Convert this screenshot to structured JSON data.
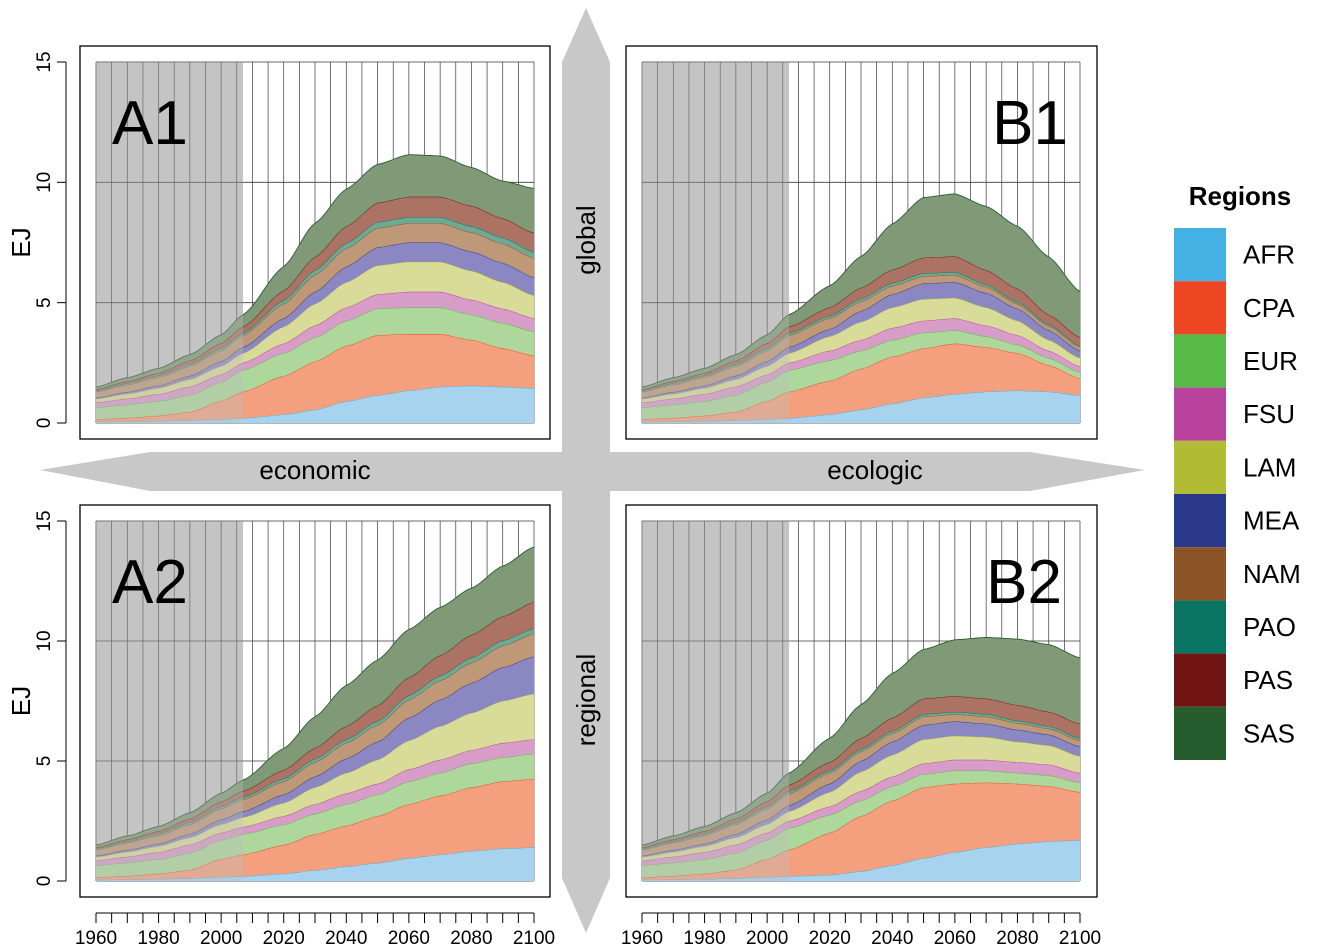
{
  "chart_data": {
    "type": "area",
    "stacked": true,
    "ylabel": "EJ",
    "ylim": [
      0,
      15
    ],
    "yticks": [
      0,
      5,
      10,
      15
    ],
    "xlim": [
      1960,
      2100
    ],
    "xticks": [
      1960,
      1980,
      2000,
      2020,
      2040,
      2060,
      2080,
      2100
    ],
    "historical_shading": [
      1960,
      2007
    ],
    "legend": {
      "title": "Regions",
      "placement": "right"
    },
    "regions": [
      {
        "name": "AFR",
        "color": "#43b1e3",
        "fill": "#a8d3ef"
      },
      {
        "name": "CPA",
        "color": "#ee4623",
        "fill": "#f4a07e"
      },
      {
        "name": "EUR",
        "color": "#58b947",
        "fill": "#add79b"
      },
      {
        "name": "FSU",
        "color": "#b8429c",
        "fill": "#d89cc9"
      },
      {
        "name": "LAM",
        "color": "#b2bb34",
        "fill": "#d9db98"
      },
      {
        "name": "MEA",
        "color": "#2a398c",
        "fill": "#8a87c2"
      },
      {
        "name": "NAM",
        "color": "#8a5225",
        "fill": "#bf9878"
      },
      {
        "name": "PAO",
        "color": "#0a7462",
        "fill": "#6ea994"
      },
      {
        "name": "PAS",
        "color": "#701313",
        "fill": "#ac7263"
      },
      {
        "name": "SAS",
        "color": "#265d2e",
        "fill": "#809a77"
      }
    ],
    "axes_labels": {
      "horizontal_left": "economic",
      "horizontal_right": "ecologic",
      "vertical_top": "global",
      "vertical_bottom": "regional"
    },
    "panels": [
      {
        "label": "A1",
        "x": [
          1960,
          1970,
          1980,
          1990,
          2000,
          2007,
          2020,
          2030,
          2040,
          2050,
          2060,
          2070,
          2080,
          2090,
          2100
        ],
        "series": {
          "AFR": [
            0.05,
            0.06,
            0.08,
            0.11,
            0.16,
            0.2,
            0.35,
            0.55,
            0.9,
            1.15,
            1.35,
            1.5,
            1.55,
            1.5,
            1.45
          ],
          "CPA": [
            0.1,
            0.15,
            0.22,
            0.35,
            0.75,
            1.1,
            1.6,
            2.0,
            2.3,
            2.5,
            2.35,
            2.2,
            1.9,
            1.6,
            1.35
          ],
          "EUR": [
            0.5,
            0.55,
            0.6,
            0.7,
            0.8,
            0.9,
            0.95,
            1.0,
            1.05,
            1.1,
            1.1,
            1.1,
            1.05,
            1.05,
            1.0
          ],
          "FSU": [
            0.2,
            0.25,
            0.3,
            0.35,
            0.3,
            0.3,
            0.4,
            0.5,
            0.55,
            0.6,
            0.65,
            0.65,
            0.62,
            0.6,
            0.55
          ],
          "LAM": [
            0.15,
            0.2,
            0.25,
            0.3,
            0.35,
            0.4,
            0.7,
            0.9,
            1.05,
            1.2,
            1.25,
            1.25,
            1.2,
            1.1,
            0.95
          ],
          "MEA": [
            0.05,
            0.08,
            0.1,
            0.15,
            0.2,
            0.25,
            0.35,
            0.5,
            0.65,
            0.75,
            0.8,
            0.8,
            0.8,
            0.8,
            0.75
          ],
          "NAM": [
            0.25,
            0.3,
            0.35,
            0.4,
            0.45,
            0.5,
            0.6,
            0.7,
            0.75,
            0.8,
            0.8,
            0.8,
            0.8,
            0.8,
            0.8
          ],
          "PAO": [
            0.05,
            0.06,
            0.07,
            0.08,
            0.1,
            0.1,
            0.15,
            0.2,
            0.22,
            0.25,
            0.25,
            0.25,
            0.25,
            0.25,
            0.25
          ],
          "PAS": [
            0.05,
            0.08,
            0.1,
            0.15,
            0.2,
            0.25,
            0.4,
            0.55,
            0.7,
            0.8,
            0.85,
            0.85,
            0.85,
            0.8,
            0.8
          ],
          "SAS": [
            0.1,
            0.15,
            0.2,
            0.25,
            0.35,
            0.5,
            1.0,
            1.4,
            1.55,
            1.6,
            1.75,
            1.7,
            1.6,
            1.55,
            1.85
          ]
        }
      },
      {
        "label": "B1",
        "x": [
          1960,
          1970,
          1980,
          1990,
          2000,
          2007,
          2020,
          2030,
          2040,
          2050,
          2060,
          2070,
          2080,
          2090,
          2100
        ],
        "series": {
          "AFR": [
            0.05,
            0.06,
            0.08,
            0.11,
            0.16,
            0.2,
            0.35,
            0.55,
            0.8,
            1.05,
            1.2,
            1.3,
            1.35,
            1.3,
            1.15
          ],
          "CPA": [
            0.1,
            0.15,
            0.22,
            0.35,
            0.75,
            1.1,
            1.4,
            1.7,
            1.95,
            2.05,
            2.1,
            1.85,
            1.55,
            1.1,
            0.7
          ],
          "EUR": [
            0.5,
            0.55,
            0.6,
            0.7,
            0.8,
            0.9,
            0.85,
            0.75,
            0.7,
            0.65,
            0.55,
            0.45,
            0.35,
            0.3,
            0.25
          ],
          "FSU": [
            0.2,
            0.25,
            0.3,
            0.35,
            0.3,
            0.3,
            0.4,
            0.45,
            0.5,
            0.5,
            0.5,
            0.45,
            0.4,
            0.3,
            0.25
          ],
          "LAM": [
            0.15,
            0.2,
            0.25,
            0.3,
            0.35,
            0.4,
            0.6,
            0.75,
            0.85,
            0.9,
            0.85,
            0.75,
            0.6,
            0.45,
            0.35
          ],
          "MEA": [
            0.05,
            0.08,
            0.1,
            0.15,
            0.2,
            0.25,
            0.3,
            0.45,
            0.55,
            0.65,
            0.65,
            0.6,
            0.5,
            0.4,
            0.3
          ],
          "NAM": [
            0.25,
            0.3,
            0.35,
            0.4,
            0.45,
            0.5,
            0.45,
            0.4,
            0.35,
            0.3,
            0.3,
            0.25,
            0.2,
            0.18,
            0.15
          ],
          "PAO": [
            0.05,
            0.06,
            0.07,
            0.08,
            0.1,
            0.1,
            0.1,
            0.12,
            0.12,
            0.12,
            0.12,
            0.1,
            0.08,
            0.07,
            0.06
          ],
          "PAS": [
            0.05,
            0.08,
            0.1,
            0.15,
            0.2,
            0.25,
            0.35,
            0.45,
            0.55,
            0.65,
            0.65,
            0.6,
            0.55,
            0.4,
            0.35
          ],
          "SAS": [
            0.1,
            0.15,
            0.2,
            0.25,
            0.35,
            0.5,
            0.9,
            1.3,
            1.9,
            2.5,
            2.6,
            2.65,
            2.6,
            2.4,
            1.9
          ]
        }
      },
      {
        "label": "A2",
        "x": [
          1960,
          1970,
          1980,
          1990,
          2000,
          2007,
          2020,
          2030,
          2040,
          2050,
          2060,
          2070,
          2080,
          2090,
          2100
        ],
        "series": {
          "AFR": [
            0.05,
            0.06,
            0.08,
            0.11,
            0.16,
            0.2,
            0.3,
            0.45,
            0.6,
            0.75,
            0.95,
            1.1,
            1.25,
            1.35,
            1.4
          ],
          "CPA": [
            0.1,
            0.15,
            0.22,
            0.35,
            0.75,
            0.9,
            1.2,
            1.5,
            1.7,
            1.95,
            2.25,
            2.45,
            2.65,
            2.8,
            2.85
          ],
          "EUR": [
            0.5,
            0.55,
            0.6,
            0.7,
            0.8,
            0.85,
            0.85,
            0.85,
            0.9,
            0.9,
            0.95,
            0.95,
            1.0,
            1.0,
            1.05
          ],
          "FSU": [
            0.2,
            0.25,
            0.3,
            0.35,
            0.3,
            0.3,
            0.35,
            0.4,
            0.45,
            0.45,
            0.5,
            0.55,
            0.55,
            0.6,
            0.6
          ],
          "LAM": [
            0.15,
            0.2,
            0.25,
            0.3,
            0.35,
            0.4,
            0.55,
            0.7,
            0.85,
            1.0,
            1.2,
            1.4,
            1.55,
            1.75,
            1.9
          ],
          "MEA": [
            0.05,
            0.08,
            0.1,
            0.15,
            0.2,
            0.25,
            0.35,
            0.45,
            0.6,
            0.75,
            0.95,
            1.1,
            1.25,
            1.4,
            1.55
          ],
          "NAM": [
            0.25,
            0.3,
            0.35,
            0.4,
            0.45,
            0.5,
            0.55,
            0.6,
            0.65,
            0.7,
            0.75,
            0.8,
            0.85,
            0.9,
            0.95
          ],
          "PAO": [
            0.05,
            0.06,
            0.07,
            0.08,
            0.1,
            0.1,
            0.12,
            0.14,
            0.15,
            0.16,
            0.18,
            0.2,
            0.2,
            0.22,
            0.22
          ],
          "PAS": [
            0.05,
            0.08,
            0.1,
            0.15,
            0.2,
            0.25,
            0.35,
            0.45,
            0.55,
            0.65,
            0.75,
            0.85,
            0.95,
            1.0,
            1.1
          ],
          "SAS": [
            0.1,
            0.15,
            0.2,
            0.25,
            0.35,
            0.45,
            0.9,
            1.3,
            1.7,
            1.9,
            2.0,
            2.0,
            1.95,
            2.1,
            2.3
          ]
        }
      },
      {
        "label": "B2",
        "x": [
          1960,
          1970,
          1980,
          1990,
          2000,
          2007,
          2020,
          2030,
          2040,
          2050,
          2060,
          2070,
          2080,
          2090,
          2100
        ],
        "series": {
          "AFR": [
            0.05,
            0.06,
            0.08,
            0.11,
            0.16,
            0.2,
            0.25,
            0.4,
            0.65,
            0.95,
            1.2,
            1.4,
            1.55,
            1.65,
            1.7
          ],
          "CPA": [
            0.1,
            0.15,
            0.22,
            0.35,
            0.75,
            1.1,
            1.75,
            2.3,
            2.7,
            2.95,
            2.85,
            2.7,
            2.5,
            2.3,
            2.0
          ],
          "EUR": [
            0.5,
            0.55,
            0.6,
            0.7,
            0.8,
            0.9,
            0.75,
            0.65,
            0.6,
            0.55,
            0.55,
            0.5,
            0.45,
            0.45,
            0.4
          ],
          "FSU": [
            0.2,
            0.25,
            0.3,
            0.35,
            0.3,
            0.3,
            0.35,
            0.4,
            0.4,
            0.45,
            0.45,
            0.45,
            0.45,
            0.45,
            0.4
          ],
          "LAM": [
            0.15,
            0.2,
            0.25,
            0.3,
            0.35,
            0.4,
            0.6,
            0.8,
            0.9,
            1.0,
            1.0,
            0.95,
            0.85,
            0.8,
            0.7
          ],
          "MEA": [
            0.05,
            0.08,
            0.1,
            0.15,
            0.2,
            0.25,
            0.35,
            0.45,
            0.55,
            0.6,
            0.6,
            0.55,
            0.5,
            0.45,
            0.4
          ],
          "NAM": [
            0.25,
            0.3,
            0.35,
            0.4,
            0.45,
            0.5,
            0.45,
            0.4,
            0.35,
            0.35,
            0.3,
            0.3,
            0.28,
            0.25,
            0.25
          ],
          "PAO": [
            0.05,
            0.06,
            0.07,
            0.08,
            0.1,
            0.1,
            0.1,
            0.1,
            0.1,
            0.1,
            0.1,
            0.1,
            0.1,
            0.1,
            0.1
          ],
          "PAS": [
            0.05,
            0.08,
            0.1,
            0.15,
            0.2,
            0.25,
            0.35,
            0.45,
            0.55,
            0.65,
            0.65,
            0.65,
            0.65,
            0.6,
            0.6
          ],
          "SAS": [
            0.1,
            0.15,
            0.2,
            0.25,
            0.35,
            0.5,
            1.0,
            1.4,
            1.85,
            2.05,
            2.35,
            2.55,
            2.75,
            2.8,
            2.75
          ]
        }
      }
    ]
  }
}
